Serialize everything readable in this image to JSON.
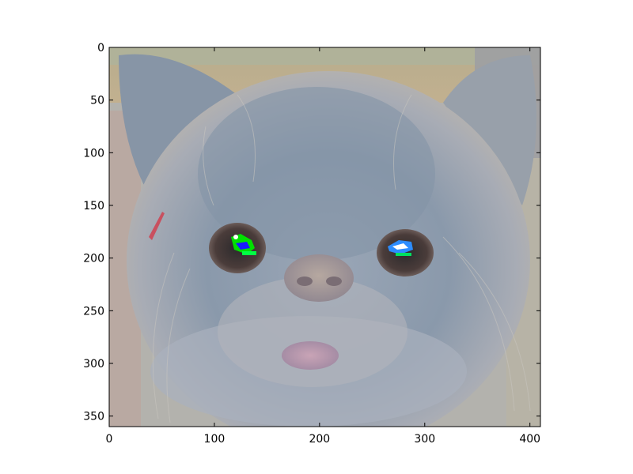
{
  "figure": {
    "image_description_visible": "",
    "x_ticks": [
      "0",
      "100",
      "200",
      "300",
      "400"
    ],
    "y_ticks": [
      "0",
      "50",
      "100",
      "150",
      "200",
      "250",
      "300",
      "350"
    ],
    "x_range": [
      0,
      410
    ],
    "y_range": [
      0,
      360
    ],
    "x_tick_values": [
      0,
      100,
      200,
      300,
      400
    ],
    "y_tick_values": [
      0,
      50,
      100,
      150,
      200,
      250,
      300,
      350
    ]
  }
}
